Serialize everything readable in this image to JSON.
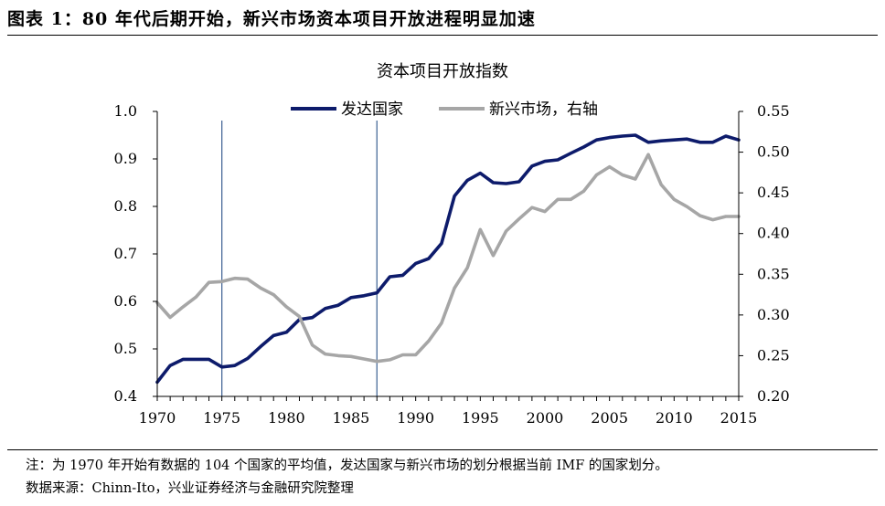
{
  "header": {
    "title": "图表 1：80 年代后期开始，新兴市场资本项目开放进程明显加速"
  },
  "footer": {
    "note": "注：为 1970 年开始有数据的 104 个国家的平均值，发达国家与新兴市场的划分根据当前 IMF 的国家划分。",
    "source": "数据来源：Chinn-Ito，兴业证券经济与金融研究院整理"
  },
  "chart_data": {
    "type": "line",
    "title": "资本项目开放指数",
    "xlabel": "",
    "ylabel": "",
    "x": [
      1970,
      1971,
      1972,
      1973,
      1974,
      1975,
      1976,
      1977,
      1978,
      1979,
      1980,
      1981,
      1982,
      1983,
      1984,
      1985,
      1986,
      1987,
      1988,
      1989,
      1990,
      1991,
      1992,
      1993,
      1994,
      1995,
      1996,
      1997,
      1998,
      1999,
      2000,
      2001,
      2002,
      2003,
      2004,
      2005,
      2006,
      2007,
      2008,
      2009,
      2010,
      2011,
      2012,
      2013,
      2014,
      2015
    ],
    "xlim": [
      1970,
      2015
    ],
    "xticks": [
      "1970",
      "1975",
      "1980",
      "1985",
      "1990",
      "1995",
      "2000",
      "2005",
      "2010",
      "2015"
    ],
    "ylim_left": [
      0.4,
      1.0
    ],
    "yticks_left": [
      "1.0",
      "0.9",
      "0.8",
      "0.7",
      "0.6",
      "0.5",
      "0.4"
    ],
    "ylim_right": [
      0.2,
      0.55
    ],
    "yticks_right": [
      "0.55",
      "0.50",
      "0.45",
      "0.40",
      "0.35",
      "0.30",
      "0.25",
      "0.20"
    ],
    "vlines": [
      1975,
      1987
    ],
    "legend_position": "top",
    "series": [
      {
        "name": "发达国家",
        "axis": "left",
        "color": "#0d1b6b",
        "values": [
          0.43,
          0.465,
          0.478,
          0.478,
          0.478,
          0.462,
          0.465,
          0.48,
          0.505,
          0.528,
          0.535,
          0.562,
          0.566,
          0.585,
          0.592,
          0.608,
          0.612,
          0.618,
          0.652,
          0.655,
          0.68,
          0.69,
          0.722,
          0.822,
          0.855,
          0.87,
          0.85,
          0.848,
          0.852,
          0.885,
          0.895,
          0.898,
          0.912,
          0.925,
          0.94,
          0.945,
          0.948,
          0.95,
          0.935,
          0.938,
          0.94,
          0.942,
          0.935,
          0.935,
          0.948,
          0.94
        ]
      },
      {
        "name": "新兴市场，右轴",
        "axis": "right",
        "color": "#a6a6a6",
        "values": [
          0.315,
          0.297,
          0.31,
          0.322,
          0.34,
          0.341,
          0.345,
          0.344,
          0.333,
          0.325,
          0.31,
          0.298,
          0.263,
          0.252,
          0.25,
          0.249,
          0.246,
          0.243,
          0.245,
          0.251,
          0.251,
          0.268,
          0.29,
          0.333,
          0.358,
          0.405,
          0.373,
          0.403,
          0.418,
          0.432,
          0.427,
          0.442,
          0.442,
          0.452,
          0.472,
          0.482,
          0.472,
          0.467,
          0.497,
          0.46,
          0.442,
          0.433,
          0.422,
          0.417,
          0.421,
          0.421
        ]
      }
    ]
  }
}
